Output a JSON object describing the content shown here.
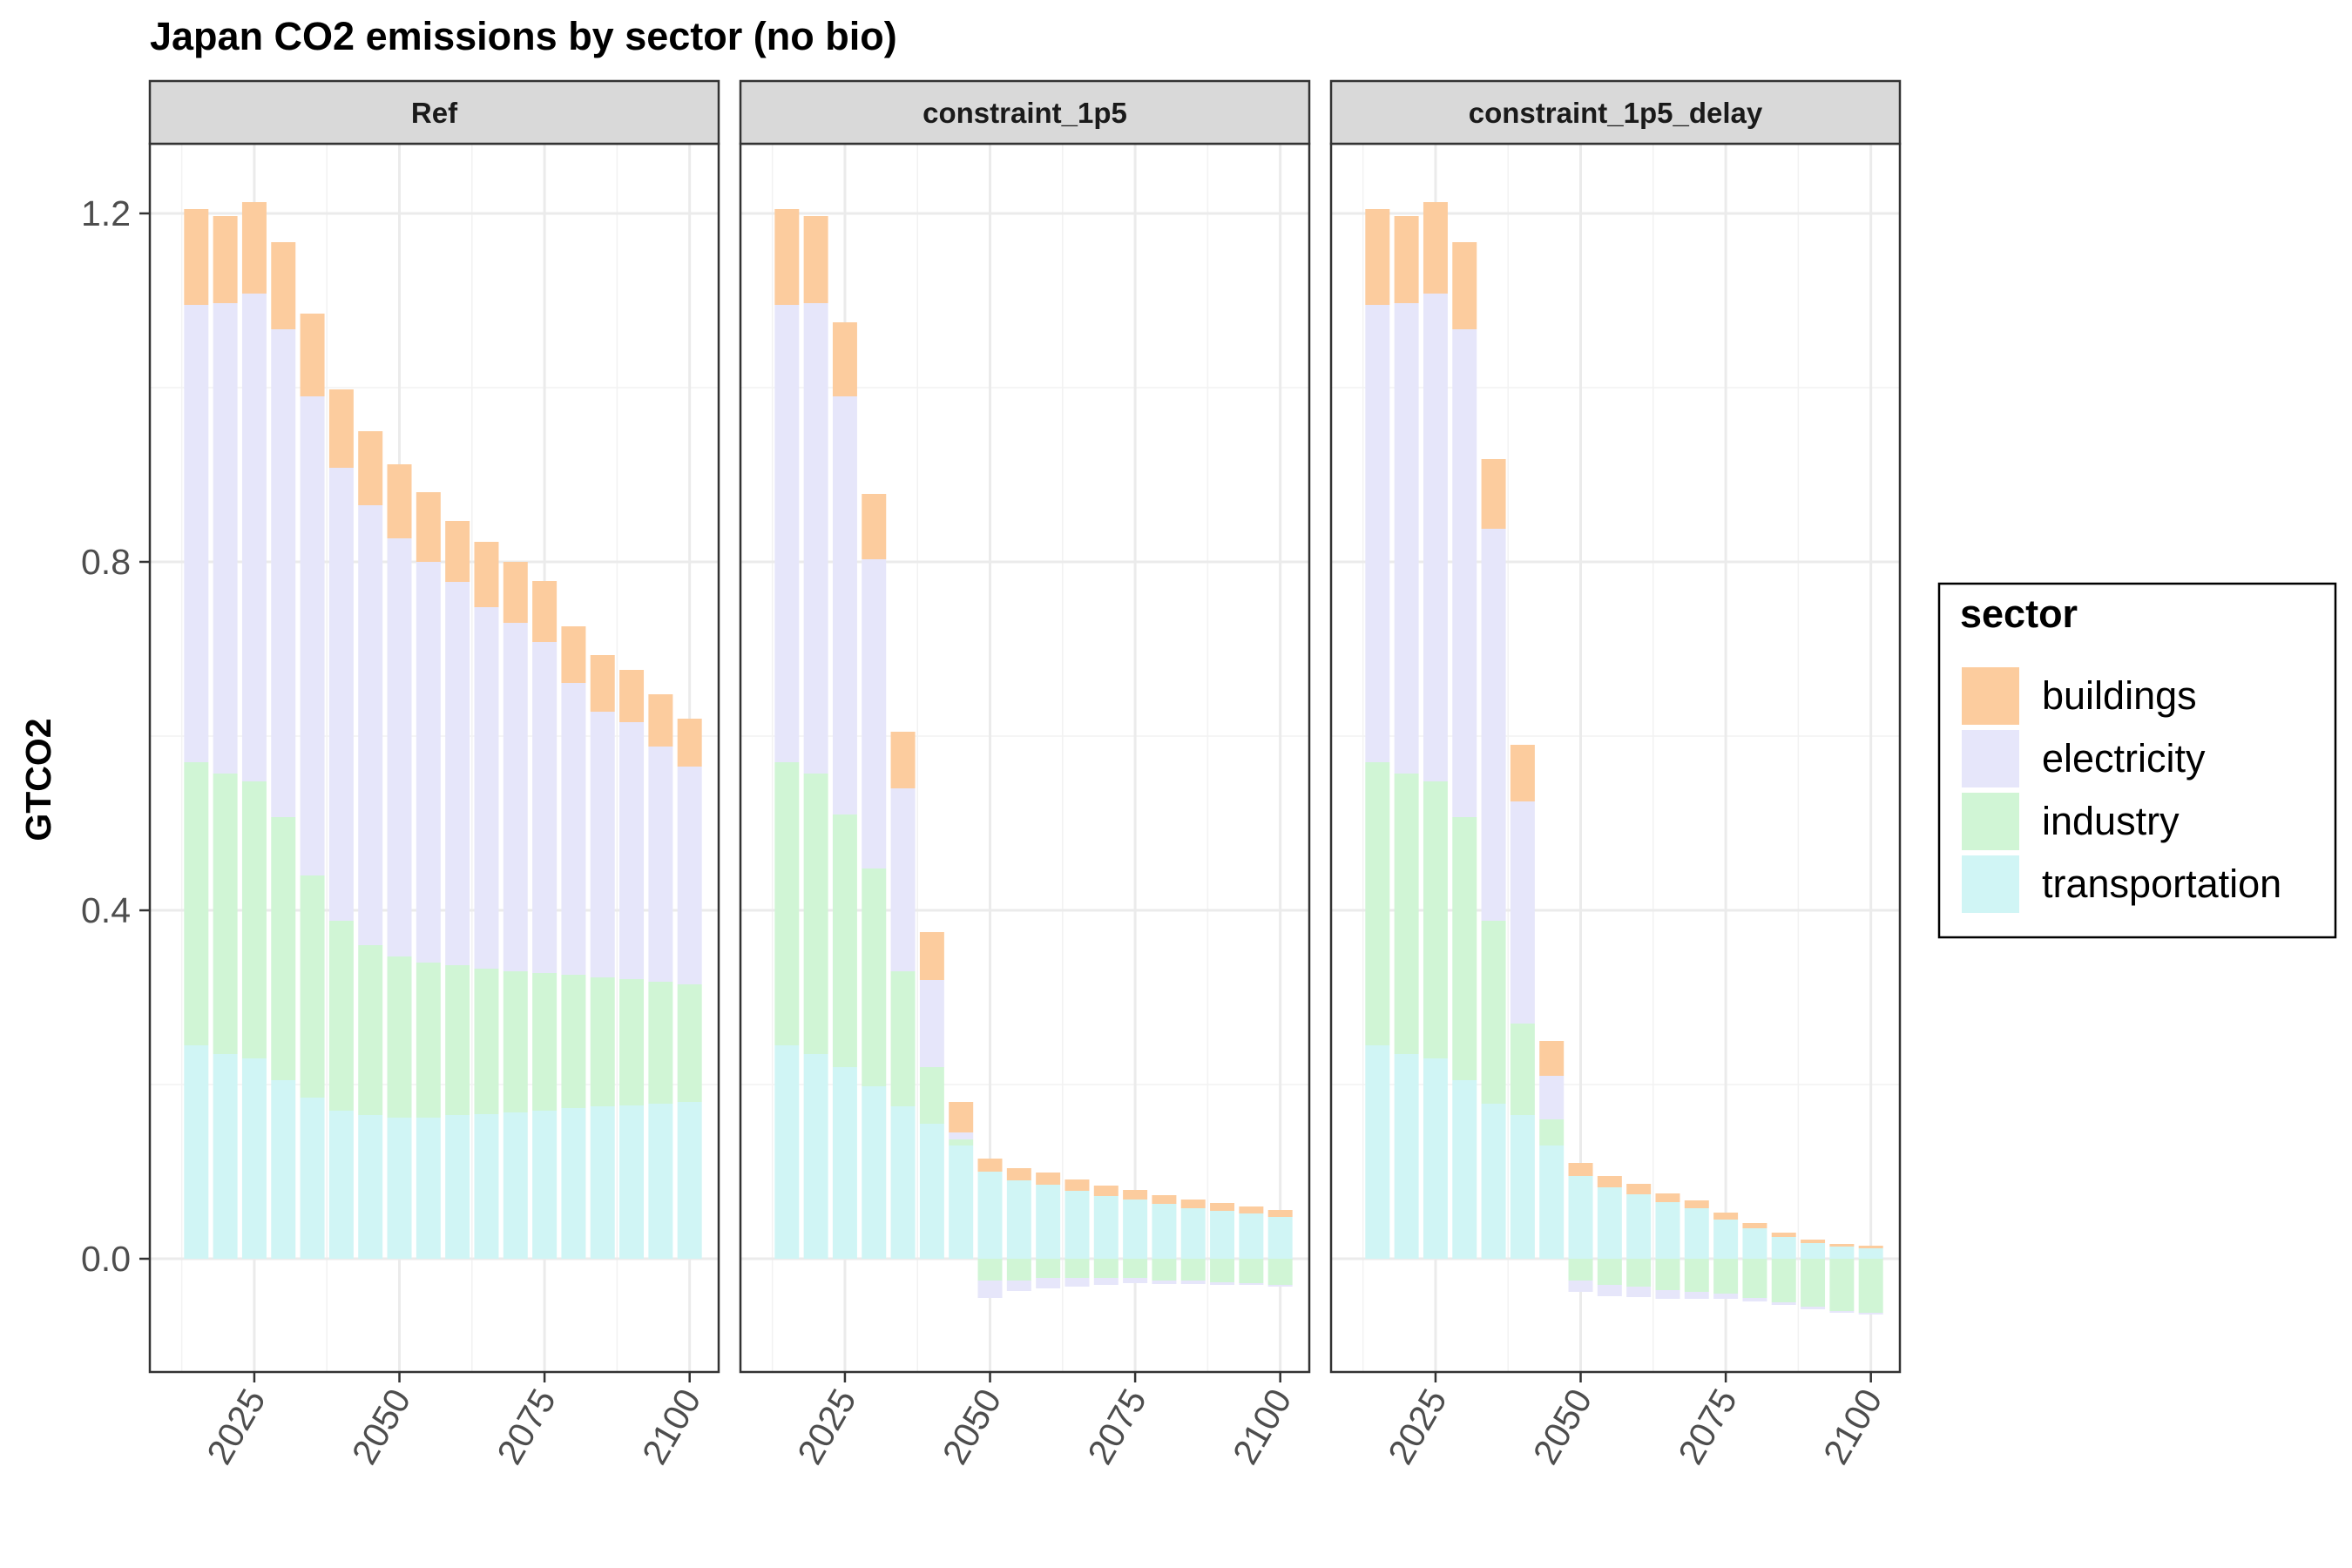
{
  "chart_data": {
    "type": "bar",
    "stacked": true,
    "title": "Japan CO2 emissions by sector (no bio)",
    "ylabel": "GTCO2",
    "xlabel": "",
    "ylim": [
      -0.13,
      1.28
    ],
    "xlim": [
      2007,
      2105
    ],
    "y_ticks": [
      "0.0",
      "0.4",
      "0.8",
      "1.2"
    ],
    "y_tick_values": [
      0.0,
      0.4,
      0.8,
      1.2
    ],
    "x_ticks": [
      "2025",
      "2050",
      "2075",
      "2100"
    ],
    "x_tick_values": [
      2025,
      2050,
      2075,
      2100
    ],
    "grid": true,
    "legend_position": "right",
    "legend_title": "sector",
    "sectors": [
      "buildings",
      "electricity",
      "industry",
      "transportation"
    ],
    "colors": {
      "buildings": "#FCCC9E",
      "electricity": "#E6E6FA",
      "industry": "#D0F5D5",
      "transportation": "#D0F5F5"
    },
    "years": [
      2015,
      2020,
      2025,
      2030,
      2035,
      2040,
      2045,
      2050,
      2055,
      2060,
      2065,
      2070,
      2075,
      2080,
      2085,
      2090,
      2095,
      2100
    ],
    "panels": [
      {
        "name": "Ref",
        "series": {
          "transportation": [
            0.245,
            0.235,
            0.23,
            0.205,
            0.185,
            0.17,
            0.165,
            0.162,
            0.162,
            0.165,
            0.166,
            0.168,
            0.17,
            0.173,
            0.175,
            0.176,
            0.178,
            0.18
          ],
          "industry": [
            0.325,
            0.322,
            0.318,
            0.302,
            0.255,
            0.218,
            0.195,
            0.185,
            0.178,
            0.172,
            0.167,
            0.162,
            0.158,
            0.153,
            0.148,
            0.145,
            0.14,
            0.135
          ],
          "electricity": [
            0.525,
            0.54,
            0.56,
            0.56,
            0.55,
            0.52,
            0.505,
            0.48,
            0.46,
            0.44,
            0.415,
            0.4,
            0.38,
            0.335,
            0.305,
            0.295,
            0.27,
            0.25
          ],
          "buildings": [
            0.11,
            0.1,
            0.105,
            0.1,
            0.095,
            0.09,
            0.085,
            0.085,
            0.08,
            0.07,
            0.075,
            0.07,
            0.07,
            0.065,
            0.065,
            0.06,
            0.06,
            0.055
          ]
        }
      },
      {
        "name": "constraint_1p5",
        "series": {
          "transportation": [
            0.245,
            0.235,
            0.22,
            0.198,
            0.175,
            0.155,
            0.13,
            0.1,
            0.09,
            0.085,
            0.078,
            0.072,
            0.068,
            0.063,
            0.058,
            0.055,
            0.052,
            0.048
          ],
          "industry": [
            0.325,
            0.322,
            0.29,
            0.25,
            0.155,
            0.065,
            0.007,
            -0.025,
            -0.025,
            -0.022,
            -0.022,
            -0.022,
            -0.022,
            -0.025,
            -0.025,
            -0.027,
            -0.028,
            -0.03
          ],
          "electricity": [
            0.525,
            0.54,
            0.48,
            0.355,
            0.21,
            0.1,
            0.008,
            -0.02,
            -0.012,
            -0.012,
            -0.01,
            -0.008,
            -0.006,
            -0.004,
            -0.004,
            -0.003,
            -0.002,
            -0.002
          ],
          "buildings": [
            0.11,
            0.1,
            0.085,
            0.075,
            0.065,
            0.055,
            0.035,
            0.015,
            0.014,
            0.014,
            0.013,
            0.012,
            0.011,
            0.01,
            0.01,
            0.009,
            0.008,
            0.008
          ]
        }
      },
      {
        "name": "constraint_1p5_delay",
        "series": {
          "transportation": [
            0.245,
            0.235,
            0.23,
            0.205,
            0.178,
            0.165,
            0.13,
            0.095,
            0.082,
            0.074,
            0.065,
            0.058,
            0.045,
            0.035,
            0.025,
            0.018,
            0.014,
            0.012
          ],
          "industry": [
            0.325,
            0.322,
            0.318,
            0.302,
            0.21,
            0.105,
            0.03,
            -0.025,
            -0.03,
            -0.032,
            -0.036,
            -0.038,
            -0.04,
            -0.045,
            -0.05,
            -0.055,
            -0.06,
            -0.062
          ],
          "electricity": [
            0.525,
            0.54,
            0.56,
            0.56,
            0.45,
            0.255,
            0.05,
            -0.013,
            -0.013,
            -0.012,
            -0.01,
            -0.008,
            -0.006,
            -0.004,
            -0.003,
            -0.003,
            -0.002,
            -0.002
          ],
          "buildings": [
            0.11,
            0.1,
            0.105,
            0.1,
            0.08,
            0.065,
            0.04,
            0.015,
            0.013,
            0.012,
            0.01,
            0.009,
            0.008,
            0.006,
            0.005,
            0.004,
            0.003,
            0.003
          ]
        }
      }
    ]
  }
}
